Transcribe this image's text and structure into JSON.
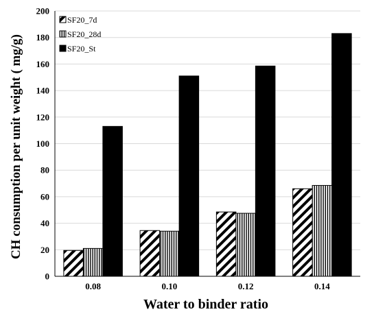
{
  "chart_data": {
    "type": "bar",
    "categories": [
      "0.08",
      "0.10",
      "0.12",
      "0.14"
    ],
    "series": [
      {
        "name": "SF20_7d",
        "values": [
          19.5,
          34.5,
          48.5,
          66.0
        ],
        "pattern": "diagonal"
      },
      {
        "name": "SF20_28d",
        "values": [
          21.0,
          34.0,
          47.5,
          68.5
        ],
        "pattern": "vertical"
      },
      {
        "name": "SF20_St",
        "values": [
          113.0,
          151.0,
          158.5,
          183.0
        ],
        "pattern": "solid"
      }
    ],
    "xlabel": "Water to binder ratio",
    "ylabel": "CH consumption per unit weight ( mg/g)",
    "ylim": [
      0,
      200
    ],
    "yticks": [
      0,
      20,
      40,
      60,
      80,
      100,
      120,
      140,
      160,
      180,
      200
    ],
    "grid": "horizontal",
    "legend_position": "top-left",
    "colors": {
      "bar_stroke": "#000000",
      "fill": "#000000",
      "grid": "#d9d9d9",
      "axis": "#000000"
    }
  }
}
